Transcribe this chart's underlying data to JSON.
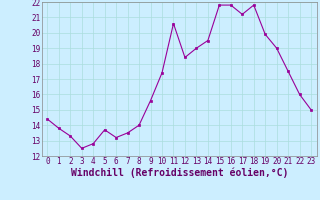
{
  "x": [
    0,
    1,
    2,
    3,
    4,
    5,
    6,
    7,
    8,
    9,
    10,
    11,
    12,
    13,
    14,
    15,
    16,
    17,
    18,
    19,
    20,
    21,
    22,
    23
  ],
  "y": [
    14.4,
    13.8,
    13.3,
    12.5,
    12.8,
    13.7,
    13.2,
    13.5,
    14.0,
    15.6,
    17.4,
    20.6,
    18.4,
    19.0,
    19.5,
    21.8,
    21.8,
    21.2,
    21.8,
    19.9,
    19.0,
    17.5,
    16.0,
    15.0
  ],
  "line_color": "#990099",
  "marker": "s",
  "marker_size": 2,
  "bg_color": "#cceeff",
  "grid_color": "#aadddd",
  "xlabel": "Windchill (Refroidissement éolien,°C)",
  "xlabel_fontsize": 7,
  "ylim": [
    12,
    22
  ],
  "xlim_min": -0.5,
  "xlim_max": 23.5,
  "yticks": [
    12,
    13,
    14,
    15,
    16,
    17,
    18,
    19,
    20,
    21,
    22
  ],
  "xticks": [
    0,
    1,
    2,
    3,
    4,
    5,
    6,
    7,
    8,
    9,
    10,
    11,
    12,
    13,
    14,
    15,
    16,
    17,
    18,
    19,
    20,
    21,
    22,
    23
  ],
  "tick_fontsize": 5.5,
  "ylabel_fontsize": 5.5
}
